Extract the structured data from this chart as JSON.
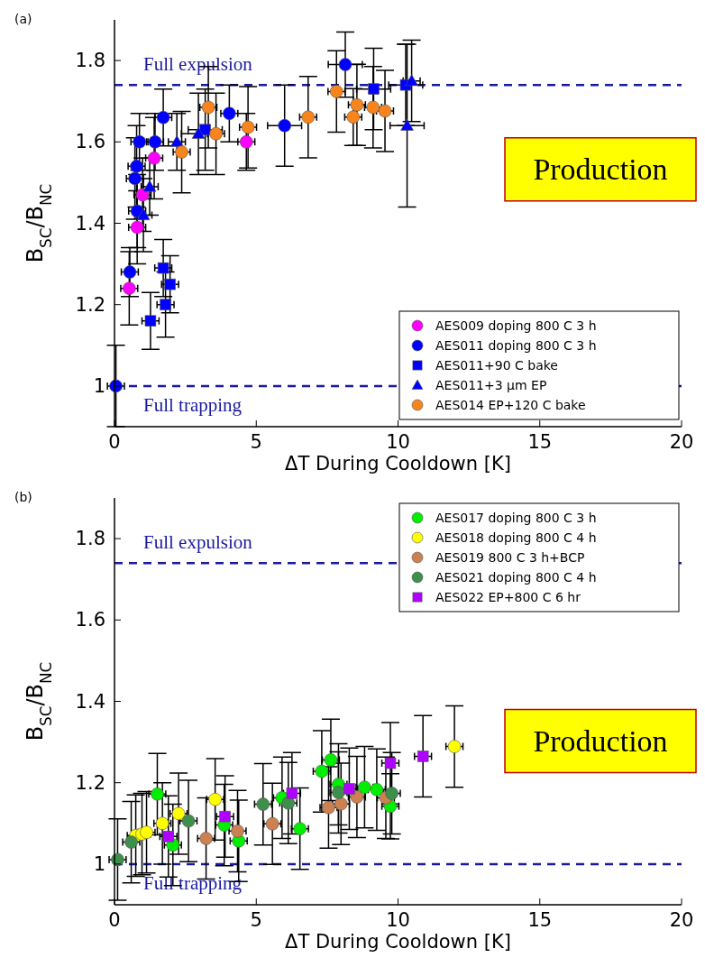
{
  "chart_data": [
    {
      "type": "scatter",
      "title": "(a)",
      "xlabel": "ΔT During Cooldown [K]",
      "ylabel": "B$_{SC}$/B$_{NC}$",
      "xlim": [
        0,
        20
      ],
      "ylim": [
        0.9,
        1.9
      ],
      "xticks": [
        0,
        5,
        10,
        15,
        20
      ],
      "yticks": [
        1,
        1.2,
        1.4,
        1.6,
        1.8
      ],
      "legend": "bottom right",
      "grid": false,
      "ref_lines": [
        {
          "axis": "y",
          "value": 1.74,
          "label": "Full expulsion",
          "color": "#1a1aa0",
          "line_style": "dashed"
        },
        {
          "axis": "y",
          "value": 1.0,
          "label": "Full trapping",
          "color": "#1a1aa0",
          "line_style": "dashed"
        }
      ],
      "annotations": [
        "Production"
      ],
      "series": [
        {
          "name": "AES009 doping 800 C 3 h",
          "color": "#ff00ff",
          "marker": "circle",
          "x": [
            0.52,
            0.8,
            0.99,
            1.4,
            4.65
          ],
          "values": [
            1.24,
            1.39,
            1.47,
            1.56,
            1.6
          ],
          "errors": [
            0.09,
            0.09,
            0.09,
            0.1,
            0.07
          ],
          "xerrors": [
            0.3,
            0.3,
            0.3,
            0.3,
            0.3
          ]
        },
        {
          "name": "AES011 doping 800 C 3 h",
          "color": "#0000ff",
          "marker": "circle",
          "x": [
            0.05,
            0.54,
            0.8,
            0.72,
            0.78,
            0.88,
            1.43,
            1.72,
            4.05,
            6.0,
            8.14
          ],
          "values": [
            1.0,
            1.28,
            1.43,
            1.51,
            1.54,
            1.6,
            1.6,
            1.66,
            1.67,
            1.64,
            1.79
          ],
          "errors": [
            0.1,
            0.06,
            0.09,
            0.1,
            0.1,
            0.07,
            0.07,
            0.07,
            0.07,
            0.1,
            0.08
          ],
          "xerrors": [
            0.3,
            0.3,
            0.3,
            0.3,
            0.3,
            0.3,
            0.3,
            0.3,
            0.3,
            0.6,
            0.6
          ]
        },
        {
          "name": "AES011+90 C bake",
          "color": "#0000ff",
          "marker": "square",
          "x": [
            1.27,
            1.72,
            1.8,
            1.96,
            3.2,
            9.14,
            10.27
          ],
          "values": [
            1.16,
            1.29,
            1.2,
            1.25,
            1.63,
            1.73,
            1.74
          ],
          "errors": [
            0.07,
            0.07,
            0.08,
            0.07,
            0.1,
            0.1,
            0.1
          ],
          "xerrors": [
            0.3,
            0.3,
            0.3,
            0.3,
            0.6,
            0.6,
            0.6
          ]
        },
        {
          "name": "AES011+3 µm EP",
          "color": "#0000ff",
          "marker": "triangle",
          "x": [
            1.02,
            1.24,
            2.2,
            2.96,
            10.32,
            10.48
          ],
          "values": [
            1.42,
            1.49,
            1.6,
            1.62,
            1.64,
            1.75
          ],
          "errors": [
            0.09,
            0.07,
            0.07,
            0.1,
            0.2,
            0.1
          ],
          "xerrors": [
            0.3,
            0.3,
            0.3,
            0.6,
            0.6,
            0.3
          ]
        },
        {
          "name": "AES014 EP+120 C bake",
          "color": "#f7841c",
          "marker": "circle",
          "x": [
            2.37,
            3.31,
            3.58,
            4.71,
            6.83,
            7.83,
            8.42,
            8.55,
            9.12,
            9.54
          ],
          "values": [
            1.575,
            1.685,
            1.62,
            1.636,
            1.661,
            1.724,
            1.661,
            1.691,
            1.685,
            1.676
          ],
          "errors": [
            0.1,
            0.1,
            0.1,
            0.1,
            0.1,
            0.1,
            0.07,
            0.1,
            0.1,
            0.1
          ],
          "xerrors": [
            0.3,
            0.3,
            0.3,
            0.3,
            0.3,
            0.3,
            0.3,
            0.3,
            0.3,
            0.3
          ]
        }
      ]
    },
    {
      "type": "scatter",
      "title": "(b)",
      "xlabel": "ΔT During Cooldown [K]",
      "ylabel": "B$_{SC}$/B$_{NC}$",
      "xlim": [
        0,
        20
      ],
      "ylim": [
        0.9,
        1.9
      ],
      "xticks": [
        0,
        5,
        10,
        15,
        20
      ],
      "yticks": [
        1,
        1.2,
        1.4,
        1.6,
        1.8
      ],
      "legend": "top right",
      "grid": false,
      "ref_lines": [
        {
          "axis": "y",
          "value": 1.74,
          "label": "Full expulsion",
          "color": "#1a1aa0",
          "line_style": "dashed"
        },
        {
          "axis": "y",
          "value": 1.0,
          "label": "Full trapping",
          "color": "#1a1aa0",
          "line_style": "dashed"
        }
      ],
      "annotations": [
        "Production"
      ],
      "series": [
        {
          "name": "AES017 doping 800 C 3 h",
          "color": "#00ee00",
          "marker": "circle",
          "x": [
            1.51,
            2.06,
            3.87,
            4.38,
            5.91,
            6.54,
            7.31,
            7.63,
            7.9,
            8.82,
            9.25,
            9.73
          ],
          "values": [
            1.172,
            1.047,
            1.096,
            1.057,
            1.163,
            1.087,
            1.228,
            1.256,
            1.196,
            1.189,
            1.183,
            1.142
          ],
          "errors": [
            0.1,
            0.1,
            0.1,
            0.1,
            0.1,
            0.1,
            0.1,
            0.1,
            0.1,
            0.1,
            0.1,
            0.08
          ],
          "xerrors": [
            0.3,
            0.3,
            0.3,
            0.3,
            0.3,
            0.3,
            0.3,
            0.3,
            0.3,
            0.3,
            0.3,
            0.3
          ]
        },
        {
          "name": "AES018 doping 800 C 4 h",
          "color": "#ffff00",
          "marker": "circle",
          "x": [
            0.75,
            0.97,
            1.13,
            1.69,
            2.26,
            3.55,
            11.99
          ],
          "values": [
            1.07,
            1.074,
            1.078,
            1.1,
            1.124,
            1.159,
            1.289
          ],
          "errors": [
            0.1,
            0.1,
            0.1,
            0.1,
            0.1,
            0.1,
            0.1
          ],
          "xerrors": [
            0.3,
            0.3,
            0.3,
            0.3,
            0.3,
            0.3,
            0.3
          ]
        },
        {
          "name": "AES019 800 C 3 h+BCP",
          "color": "#cd8050",
          "marker": "circle",
          "x": [
            3.23,
            4.34,
            5.57,
            7.55,
            7.99,
            8.55,
            9.57
          ],
          "values": [
            1.063,
            1.081,
            1.099,
            1.139,
            1.148,
            1.165,
            1.163
          ],
          "errors": [
            0.1,
            0.1,
            0.1,
            0.1,
            0.1,
            0.1,
            0.1
          ],
          "xerrors": [
            0.3,
            0.3,
            0.3,
            0.3,
            0.3,
            0.3,
            0.3
          ]
        },
        {
          "name": "AES021 doping 800 C 4 h",
          "color": "#3e8e4c",
          "marker": "circle",
          "x": [
            0.11,
            0.59,
            2.61,
            5.24,
            6.13,
            7.9,
            9.78
          ],
          "values": [
            1.011,
            1.054,
            1.106,
            1.147,
            1.15,
            1.176,
            1.174
          ],
          "errors": [
            0.1,
            0.1,
            0.1,
            0.1,
            0.1,
            0.1,
            0.1
          ],
          "xerrors": [
            0.3,
            0.3,
            0.3,
            0.3,
            0.3,
            0.3,
            0.3
          ]
        },
        {
          "name": "AES022 EP+800 C 6 hr",
          "color": "#b000ff",
          "marker": "square",
          "x": [
            1.9,
            3.9,
            6.26,
            8.28,
            9.73,
            10.88
          ],
          "values": [
            1.068,
            1.117,
            1.174,
            1.185,
            1.248,
            1.265
          ],
          "errors": [
            0.1,
            0.1,
            0.1,
            0.1,
            0.1,
            0.1
          ],
          "xerrors": [
            0.3,
            0.3,
            0.3,
            0.3,
            0.3,
            0.3
          ]
        }
      ]
    }
  ]
}
